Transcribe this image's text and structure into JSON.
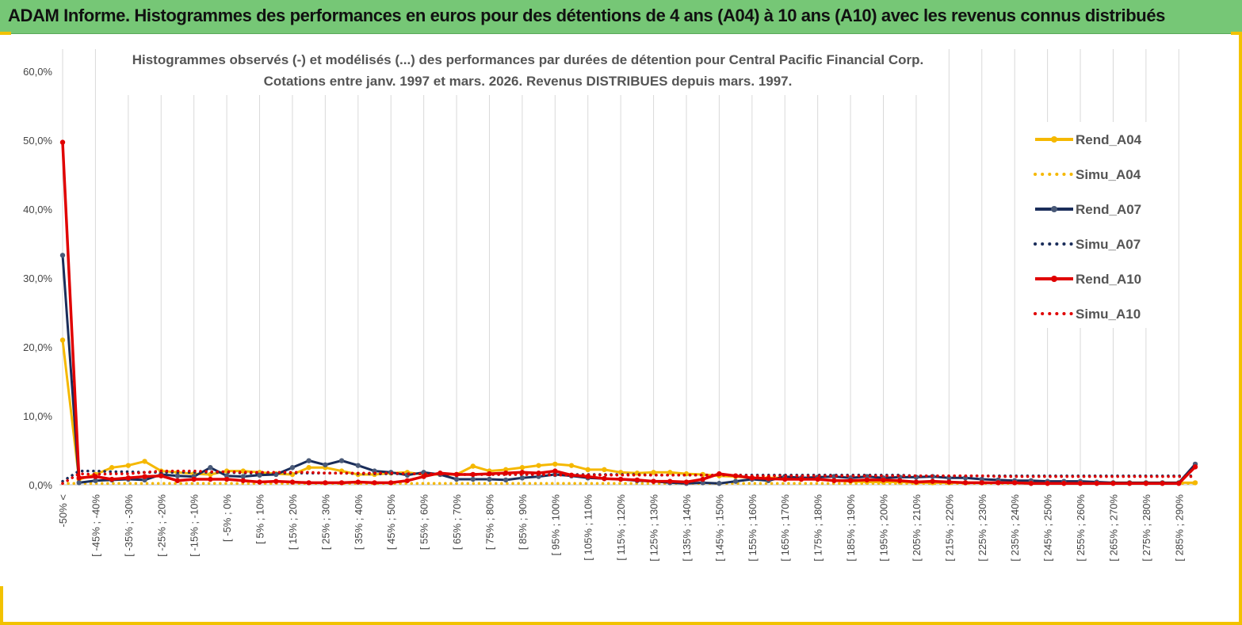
{
  "header": {
    "title": "ADAM Informe. Histogrammes des performances en euros pour des détentions de 4 ans (A04) à 10 ans (A10) avec les revenus connus distribués"
  },
  "chart_data": {
    "type": "line",
    "title_lines": [
      "Histogrammes observés (-)  et modélisés (...) des performances par durées de détention pour Central Pacific Financial Corp.",
      "Cotations entre janv. 1997 et mars. 2026.  Revenus DISTRIBUES depuis mars. 1997."
    ],
    "ylim": [
      0,
      60
    ],
    "yticks": [
      "0,0%",
      "10,0%",
      "20,0%",
      "30,0%",
      "40,0%",
      "50,0%",
      "60,0%"
    ],
    "grid": "vertical",
    "legend_position": "right",
    "category_count": 70,
    "xtick_labels": [
      "-50% <",
      "[ -45% ; -40%",
      "[ -35% ; -30%",
      "[ -25% ; -20%",
      "[ -15% ; -10%",
      "[ -5% ; 0%",
      "[ 5% ; 10%",
      "[ 15% ; 20%",
      "[ 25% ; 30%",
      "[ 35% ; 40%",
      "[ 45% ; 50%",
      "[ 55% ; 60%",
      "[ 65% ; 70%",
      "[ 75% ; 80%",
      "[ 85% ; 90%",
      "[ 95% ; 100%",
      "[ 105% ; 110%",
      "[ 115% ; 120%",
      "[ 125% ; 130%",
      "[ 135% ; 140%",
      "[ 145% ; 150%",
      "[ 155% ; 160%",
      "[ 165% ; 170%",
      "[ 175% ; 180%",
      "[ 185% ; 190%",
      "[ 195% ; 200%",
      "[ 205% ; 210%",
      "[ 215% ; 220%",
      "[ 225% ; 230%",
      "[ 235% ; 240%",
      "[ 245% ; 250%",
      "[ 255% ; 260%",
      "[ 265% ; 270%",
      "[ 275% ; 280%",
      "[ 285% ; 290%"
    ],
    "series": [
      {
        "name": "Rend_A04",
        "color": "#f5b800",
        "style": "solid",
        "markers": true,
        "values": [
          21.0,
          0.8,
          1.5,
          2.5,
          2.8,
          3.4,
          2.0,
          1.8,
          1.6,
          1.5,
          2.0,
          2.0,
          1.8,
          1.6,
          1.5,
          2.5,
          2.5,
          2.0,
          1.5,
          1.5,
          1.7,
          1.8,
          1.5,
          1.5,
          1.5,
          2.7,
          2.0,
          2.2,
          2.5,
          2.8,
          3.0,
          2.8,
          2.2,
          2.2,
          1.8,
          1.7,
          1.8,
          1.8,
          1.6,
          1.5,
          1.3,
          1.2,
          1.0,
          1.0,
          1.0,
          0.8,
          0.8,
          0.6,
          0.5,
          0.4,
          0.4,
          0.4,
          0.3,
          0.3,
          0.3,
          0.3,
          0.3,
          0.3,
          0.3,
          0.3,
          0.3,
          0.3,
          0.3,
          0.3,
          0.3,
          0.3,
          0.3,
          0.3,
          0.3,
          0.3
        ]
      },
      {
        "name": "Simu_A04",
        "color": "#f5b800",
        "style": "dotted",
        "markers": false,
        "values": [
          0.2,
          0.2,
          0.2,
          0.2,
          0.2,
          0.2,
          0.2,
          0.2,
          0.2,
          0.2,
          0.2,
          0.2,
          0.2,
          0.2,
          0.2,
          0.2,
          0.2,
          0.2,
          0.2,
          0.2,
          0.2,
          0.2,
          0.2,
          0.2,
          0.2,
          0.2,
          0.2,
          0.2,
          0.2,
          0.2,
          0.2,
          0.2,
          0.2,
          0.2,
          0.2,
          0.2,
          0.2,
          0.2,
          0.2,
          0.2,
          0.2,
          0.2,
          0.2,
          0.2,
          0.2,
          0.2,
          0.2,
          0.2,
          0.2,
          0.2,
          0.2,
          0.2,
          0.2,
          0.2,
          0.2,
          0.2,
          0.2,
          0.2,
          0.2,
          0.2,
          0.2,
          0.2,
          0.2,
          0.2,
          0.2,
          0.2,
          0.2,
          0.2,
          0.2,
          0.2
        ]
      },
      {
        "name": "Rend_A07",
        "color": "#1a2d5a",
        "style": "solid",
        "markers": true,
        "values": [
          33.3,
          0.3,
          0.6,
          0.7,
          0.8,
          0.7,
          1.5,
          1.3,
          1.2,
          2.5,
          1.3,
          1.2,
          1.4,
          1.5,
          2.5,
          3.5,
          2.9,
          3.5,
          2.8,
          2.0,
          1.8,
          1.4,
          1.8,
          1.5,
          0.8,
          0.8,
          0.8,
          0.7,
          1.0,
          1.2,
          1.5,
          1.3,
          1.0,
          0.9,
          0.8,
          0.6,
          0.5,
          0.3,
          0.2,
          0.3,
          0.2,
          0.5,
          0.8,
          0.6,
          1.2,
          1.0,
          1.1,
          1.2,
          1.0,
          1.2,
          1.0,
          1.1,
          1.1,
          1.2,
          1.0,
          1.0,
          0.8,
          0.7,
          0.6,
          0.6,
          0.5,
          0.5,
          0.5,
          0.4,
          0.3,
          0.3,
          0.3,
          0.3,
          0.3,
          3.0
        ]
      },
      {
        "name": "Simu_A07",
        "color": "#1a2d5a",
        "style": "dotted",
        "markers": false,
        "values": [
          0.5,
          2.0,
          2.0,
          1.9,
          1.9,
          1.8,
          1.8,
          1.8,
          1.8,
          1.8,
          1.8,
          1.7,
          1.7,
          1.7,
          1.7,
          1.7,
          1.7,
          1.7,
          1.6,
          1.6,
          1.6,
          1.6,
          1.6,
          1.6,
          1.5,
          1.5,
          1.5,
          1.5,
          1.5,
          1.5,
          1.5,
          1.5,
          1.5,
          1.5,
          1.5,
          1.5,
          1.4,
          1.4,
          1.4,
          1.4,
          1.4,
          1.4,
          1.4,
          1.4,
          1.4,
          1.4,
          1.4,
          1.4,
          1.4,
          1.4,
          1.4,
          1.4,
          1.3,
          1.3,
          1.3,
          1.3,
          1.3,
          1.3,
          1.3,
          1.3,
          1.3,
          1.3,
          1.3,
          1.3,
          1.3,
          1.3,
          1.3,
          1.3,
          1.3,
          1.3
        ]
      },
      {
        "name": "Rend_A10",
        "color": "#e00000",
        "style": "solid",
        "markers": true,
        "values": [
          49.7,
          1.0,
          1.2,
          0.8,
          1.0,
          1.2,
          1.3,
          0.6,
          0.8,
          0.8,
          0.8,
          0.6,
          0.4,
          0.5,
          0.4,
          0.3,
          0.3,
          0.3,
          0.4,
          0.3,
          0.3,
          0.6,
          1.2,
          1.7,
          1.5,
          1.5,
          1.6,
          1.7,
          1.8,
          1.7,
          2.0,
          1.4,
          1.2,
          0.9,
          0.8,
          0.7,
          0.5,
          0.5,
          0.4,
          0.8,
          1.6,
          1.3,
          1.0,
          0.9,
          0.8,
          0.8,
          0.8,
          0.6,
          0.6,
          0.7,
          0.7,
          0.6,
          0.4,
          0.5,
          0.4,
          0.3,
          0.3,
          0.3,
          0.3,
          0.2,
          0.2,
          0.2,
          0.2,
          0.2,
          0.2,
          0.2,
          0.2,
          0.2,
          0.2,
          2.6
        ]
      },
      {
        "name": "Simu_A10",
        "color": "#e00000",
        "style": "dotted",
        "markers": false,
        "values": [
          0.2,
          1.6,
          1.5,
          1.6,
          1.6,
          1.8,
          2.0,
          2.0,
          2.0,
          1.9,
          1.9,
          1.8,
          1.8,
          1.8,
          1.8,
          1.8,
          1.7,
          1.7,
          1.7,
          1.7,
          1.7,
          1.6,
          1.6,
          1.6,
          1.5,
          1.5,
          1.5,
          1.5,
          1.5,
          1.5,
          1.4,
          1.4,
          1.4,
          1.4,
          1.4,
          1.4,
          1.4,
          1.4,
          1.4,
          1.4,
          1.4,
          1.4,
          1.3,
          1.3,
          1.3,
          1.3,
          1.3,
          1.3,
          1.3,
          1.3,
          1.3,
          1.3,
          1.3,
          1.3,
          1.3,
          1.3,
          1.3,
          1.2,
          1.2,
          1.2,
          1.2,
          1.2,
          1.2,
          1.2,
          1.2,
          1.2,
          1.2,
          1.2,
          1.2,
          1.2
        ]
      }
    ]
  }
}
